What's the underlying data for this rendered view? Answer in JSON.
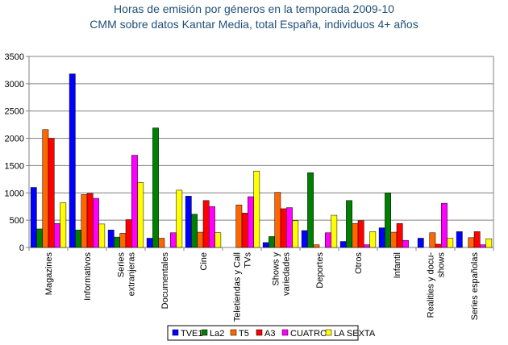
{
  "title_line1": "Horas de emisión por géneros en la temporada 2009-10",
  "title_line2": "CMM sobre datos Kantar Media, total España, individuos 4+ años",
  "chart_data": {
    "type": "bar",
    "ylim": [
      0,
      3500
    ],
    "yticks": [
      0,
      500,
      1000,
      1500,
      2000,
      2500,
      3000,
      3500
    ],
    "grid": true,
    "legend_position": "bottom",
    "categories": [
      [
        "Magazines"
      ],
      [
        "Informativos"
      ],
      [
        "Series",
        "extranjeras"
      ],
      [
        "Documentales"
      ],
      [
        "Cine"
      ],
      [
        "Teletiendas y Call",
        "TVs"
      ],
      [
        "Shows y",
        "variedades"
      ],
      [
        "Deportes"
      ],
      [
        "Otros"
      ],
      [
        "Infantil"
      ],
      [
        "Realities y docu-",
        "shows"
      ],
      [
        "Series españolas"
      ]
    ],
    "series": [
      {
        "name": "TVE1",
        "color": "#0000ff",
        "values": [
          1100,
          3180,
          320,
          170,
          940,
          0,
          90,
          310,
          110,
          360,
          170,
          290
        ]
      },
      {
        "name": "La2",
        "color": "#008000",
        "values": [
          340,
          320,
          190,
          2190,
          610,
          0,
          200,
          1370,
          860,
          1000,
          0,
          0
        ]
      },
      {
        "name": "T5",
        "color": "#ff6600",
        "values": [
          2160,
          970,
          260,
          170,
          280,
          780,
          1010,
          50,
          440,
          280,
          270,
          180
        ]
      },
      {
        "name": "A3",
        "color": "#ff0000",
        "values": [
          2000,
          990,
          510,
          0,
          860,
          630,
          710,
          0,
          490,
          440,
          60,
          290
        ]
      },
      {
        "name": "CUATRO",
        "color": "#ff00ff",
        "values": [
          440,
          900,
          1690,
          270,
          750,
          930,
          730,
          270,
          50,
          130,
          810,
          50
        ]
      },
      {
        "name": "LA SEXTA",
        "color": "#ffff00",
        "values": [
          820,
          430,
          1190,
          1050,
          270,
          1400,
          490,
          590,
          290,
          0,
          170,
          160
        ]
      }
    ]
  }
}
